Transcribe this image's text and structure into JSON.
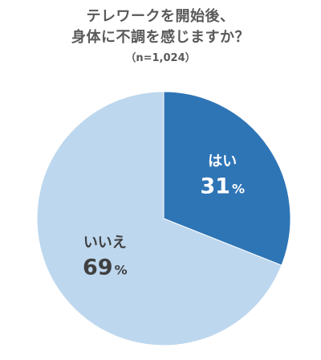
{
  "chart_data": {
    "type": "pie",
    "title_lines": [
      "テレワークを開始後、",
      "身体に不調を感じますか？"
    ],
    "subtitle": "（n=1,024）",
    "slices": [
      {
        "label": "はい",
        "value": 31,
        "value_text": "31",
        "unit": "%",
        "color": "#2E75B6",
        "label_color": "#ffffff"
      },
      {
        "label": "いいえ",
        "value": 69,
        "value_text": "69",
        "unit": "%",
        "color": "#BDD7EE",
        "label_color": "#404040"
      }
    ],
    "start": "12 o'clock",
    "direction": "clockwise",
    "legend": "none"
  }
}
